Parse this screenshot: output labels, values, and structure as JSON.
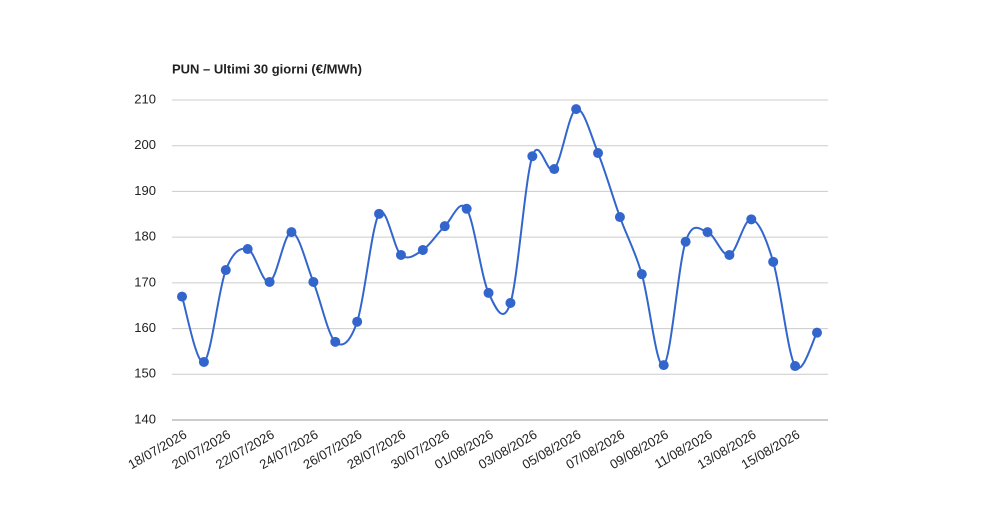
{
  "chart_data": {
    "type": "line",
    "title": "PUN – Ultimi 30 giorni (€/MWh)",
    "categories": [
      "18/07/2026",
      null,
      "20/07/2026",
      null,
      "22/07/2026",
      null,
      "24/07/2026",
      null,
      "26/07/2026",
      null,
      "28/07/2026",
      null,
      "30/07/2026",
      null,
      "01/08/2026",
      null,
      "03/08/2026",
      null,
      "05/08/2026",
      null,
      "07/08/2026",
      null,
      "09/08/2026",
      null,
      "11/08/2026",
      null,
      "13/08/2026",
      null,
      "15/08/2026",
      null
    ],
    "series": [
      {
        "color": "#3366cc",
        "values": [
          167,
          152.7,
          172.8,
          177.4,
          170.2,
          181.1,
          170.2,
          157.1,
          161.5,
          185.1,
          176.1,
          177.2,
          182.4,
          186.2,
          167.8,
          165.6,
          197.7,
          194.9,
          208,
          198.4,
          184.4,
          171.9,
          152,
          179,
          181.1,
          176.1,
          183.9,
          174.6,
          151.8,
          159.1
        ]
      }
    ],
    "ylim": [
      140,
      210
    ],
    "yticks": [
      140,
      150,
      160,
      170,
      180,
      190,
      200,
      210
    ],
    "grid": true
  }
}
